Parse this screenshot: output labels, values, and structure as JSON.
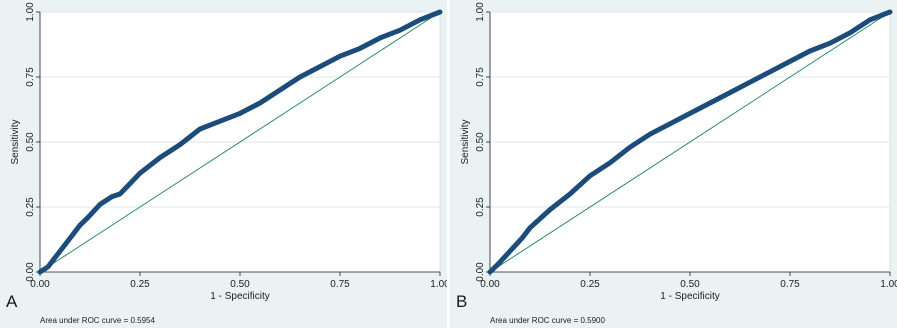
{
  "chart_data": [
    {
      "type": "line",
      "panel_label": "A",
      "xlabel": "1 - Specificity",
      "ylabel": "Sensitivity",
      "xlim": [
        0,
        1
      ],
      "ylim": [
        0,
        1
      ],
      "x_ticks": [
        "0.00",
        "0.25",
        "0.50",
        "0.75",
        "1.00"
      ],
      "y_ticks": [
        "0.00",
        "0.25",
        "0.50",
        "0.75",
        "1.00"
      ],
      "grid": true,
      "annotation": "Area under ROC curve = 0.5954",
      "colors": {
        "roc": "#1c4c7a",
        "reference": "#2f8a72",
        "background": "#eaf2f3",
        "plot": "#ffffff"
      },
      "series": [
        {
          "values_x": [
            0.0,
            0.02,
            0.04,
            0.06,
            0.08,
            0.1,
            0.12,
            0.15,
            0.18,
            0.2,
            0.25,
            0.3,
            0.35,
            0.4,
            0.45,
            0.5,
            0.55,
            0.6,
            0.65,
            0.7,
            0.75,
            0.8,
            0.85,
            0.9,
            0.95,
            1.0
          ],
          "values_y": [
            0.0,
            0.02,
            0.06,
            0.1,
            0.14,
            0.18,
            0.21,
            0.26,
            0.29,
            0.3,
            0.38,
            0.44,
            0.49,
            0.55,
            0.58,
            0.61,
            0.65,
            0.7,
            0.75,
            0.79,
            0.83,
            0.86,
            0.9,
            0.93,
            0.97,
            1.0
          ]
        },
        {
          "values_x": [
            0,
            1
          ],
          "values_y": [
            0,
            1
          ]
        }
      ]
    },
    {
      "type": "line",
      "panel_label": "B",
      "xlabel": "1 - Specificity",
      "ylabel": "Sensitivity",
      "xlim": [
        0,
        1
      ],
      "ylim": [
        0,
        1
      ],
      "x_ticks": [
        "0.00",
        "0.25",
        "0.50",
        "0.75",
        "1.00"
      ],
      "y_ticks": [
        "0.00",
        "0.25",
        "0.50",
        "0.75",
        "1.00"
      ],
      "grid": true,
      "annotation": "Area under ROC curve = 0.5900",
      "colors": {
        "roc": "#1c4c7a",
        "reference": "#2f8a72",
        "background": "#eaf2f3",
        "plot": "#ffffff"
      },
      "series": [
        {
          "values_x": [
            0.0,
            0.02,
            0.05,
            0.08,
            0.1,
            0.15,
            0.2,
            0.25,
            0.3,
            0.35,
            0.4,
            0.45,
            0.5,
            0.55,
            0.6,
            0.65,
            0.7,
            0.75,
            0.8,
            0.85,
            0.9,
            0.95,
            1.0
          ],
          "values_y": [
            0.0,
            0.03,
            0.08,
            0.13,
            0.17,
            0.24,
            0.3,
            0.37,
            0.42,
            0.48,
            0.53,
            0.57,
            0.61,
            0.65,
            0.69,
            0.73,
            0.77,
            0.81,
            0.85,
            0.88,
            0.92,
            0.97,
            1.0
          ]
        },
        {
          "values_x": [
            0,
            1
          ],
          "values_y": [
            0,
            1
          ]
        }
      ]
    }
  ]
}
